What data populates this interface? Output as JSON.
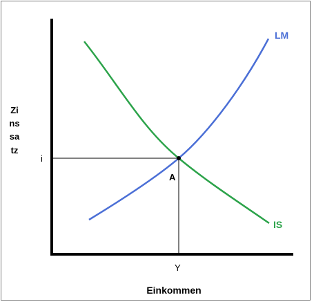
{
  "diagram": {
    "xlabel": "Einkommen",
    "ylabel": "Zinssatz",
    "equilibrium_label": "A",
    "y_tick_label": "i",
    "x_tick_label": "Y",
    "curves": [
      {
        "name": "LM",
        "color": "#4b6fd6"
      },
      {
        "name": "IS",
        "color": "#2ca34a"
      }
    ],
    "axis_color": "#000000",
    "guide_color": "#000000"
  }
}
